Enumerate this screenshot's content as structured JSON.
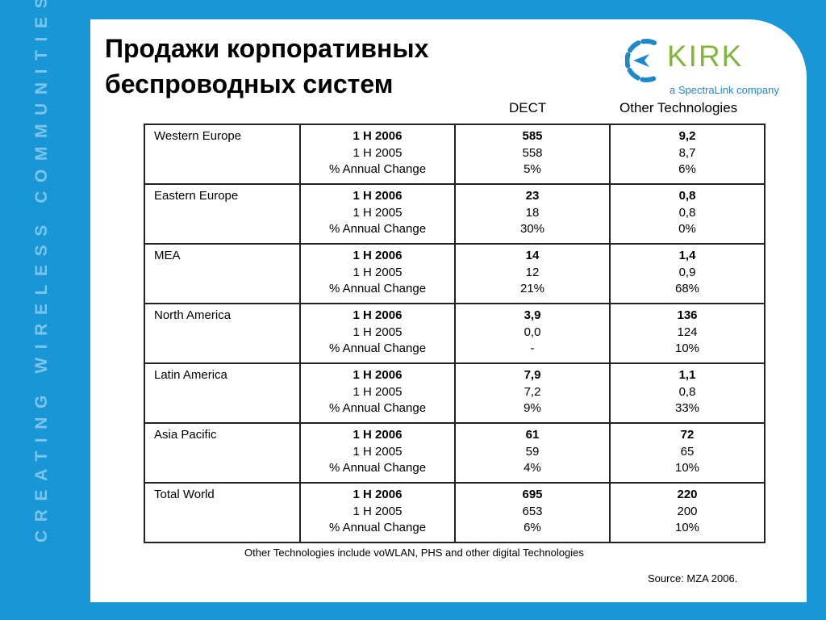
{
  "sidebar_text": "CREATING WIRELESS COMMUNITIES",
  "title_lines": [
    "Продажи корпоративных",
    "беспроводных систем"
  ],
  "logo": {
    "word": "KIRK",
    "tagline": "a SpectraLink company",
    "colors": {
      "word": "#82b53e",
      "mark": "#1e88c9"
    }
  },
  "columns": {
    "dect": "DECT",
    "other": "Other Technologies"
  },
  "metrics": [
    "1 H 2006",
    "1 H 2005",
    "% Annual Change"
  ],
  "rows": [
    {
      "region": "Western Europe",
      "dect": [
        "585",
        "558",
        "5%"
      ],
      "other": [
        "9,2",
        "8,7",
        "6%"
      ]
    },
    {
      "region": "Eastern Europe",
      "dect": [
        "23",
        "18",
        "30%"
      ],
      "other": [
        "0,8",
        "0,8",
        "0%"
      ]
    },
    {
      "region": "MEA",
      "dect": [
        "14",
        "12",
        "21%"
      ],
      "other": [
        "1,4",
        "0,9",
        "68%"
      ]
    },
    {
      "region": "North America",
      "dect": [
        "3,9",
        "0,0",
        "-"
      ],
      "other": [
        "136",
        "124",
        "10%"
      ]
    },
    {
      "region": "Latin America",
      "dect": [
        "7,9",
        "7,2",
        "9%"
      ],
      "other": [
        "1,1",
        "0,8",
        "33%"
      ]
    },
    {
      "region": "Asia Pacific",
      "dect": [
        "61",
        "59",
        "4%"
      ],
      "other": [
        "72",
        "65",
        "10%"
      ]
    },
    {
      "region": "Total World",
      "dect": [
        "695",
        "653",
        "6%"
      ],
      "other": [
        "220",
        "200",
        "10%"
      ]
    }
  ],
  "footnote": "Other Technologies include voWLAN, PHS and other digital Technologies",
  "source": "Source: MZA 2006.",
  "colors": {
    "background": "#1996d6",
    "sidebar_text": "#7cc4ea"
  }
}
